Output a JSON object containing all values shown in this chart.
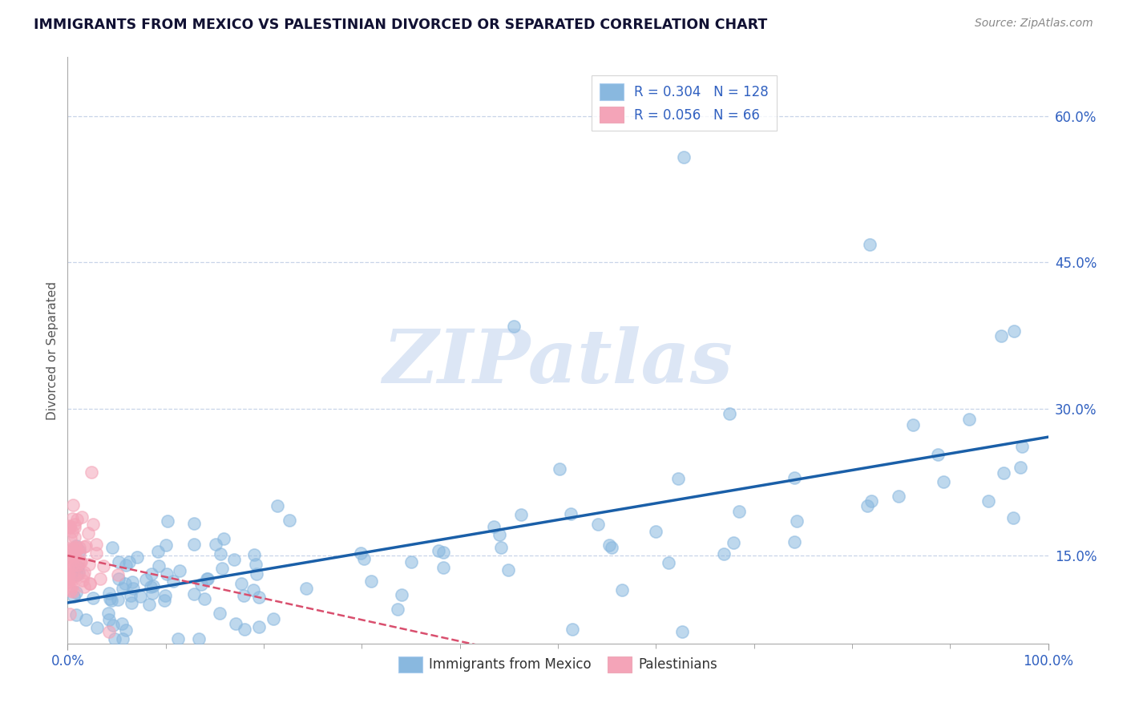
{
  "title": "IMMIGRANTS FROM MEXICO VS PALESTINIAN DIVORCED OR SEPARATED CORRELATION CHART",
  "source_text": "Source: ZipAtlas.com",
  "ylabel": "Divorced or Separated",
  "legend_label1": "Immigrants from Mexico",
  "legend_label2": "Palestinians",
  "r1": 0.304,
  "n1": 128,
  "r2": 0.056,
  "n2": 66,
  "xmin": 0.0,
  "xmax": 1.0,
  "ymin": 0.06,
  "ymax": 0.66,
  "yticks": [
    0.15,
    0.3,
    0.45,
    0.6
  ],
  "ytick_labels": [
    "15.0%",
    "30.0%",
    "45.0%",
    "60.0%"
  ],
  "xtick_labels": [
    "0.0%",
    "100.0%"
  ],
  "color_blue": "#89b8df",
  "color_pink": "#f4a4b8",
  "line_color_blue": "#1a5fa8",
  "line_color_pink": "#d94f6e",
  "axis_label_color": "#3060c0",
  "watermark": "ZIPatlas",
  "watermark_color": "#dce6f5",
  "title_color": "#111133"
}
